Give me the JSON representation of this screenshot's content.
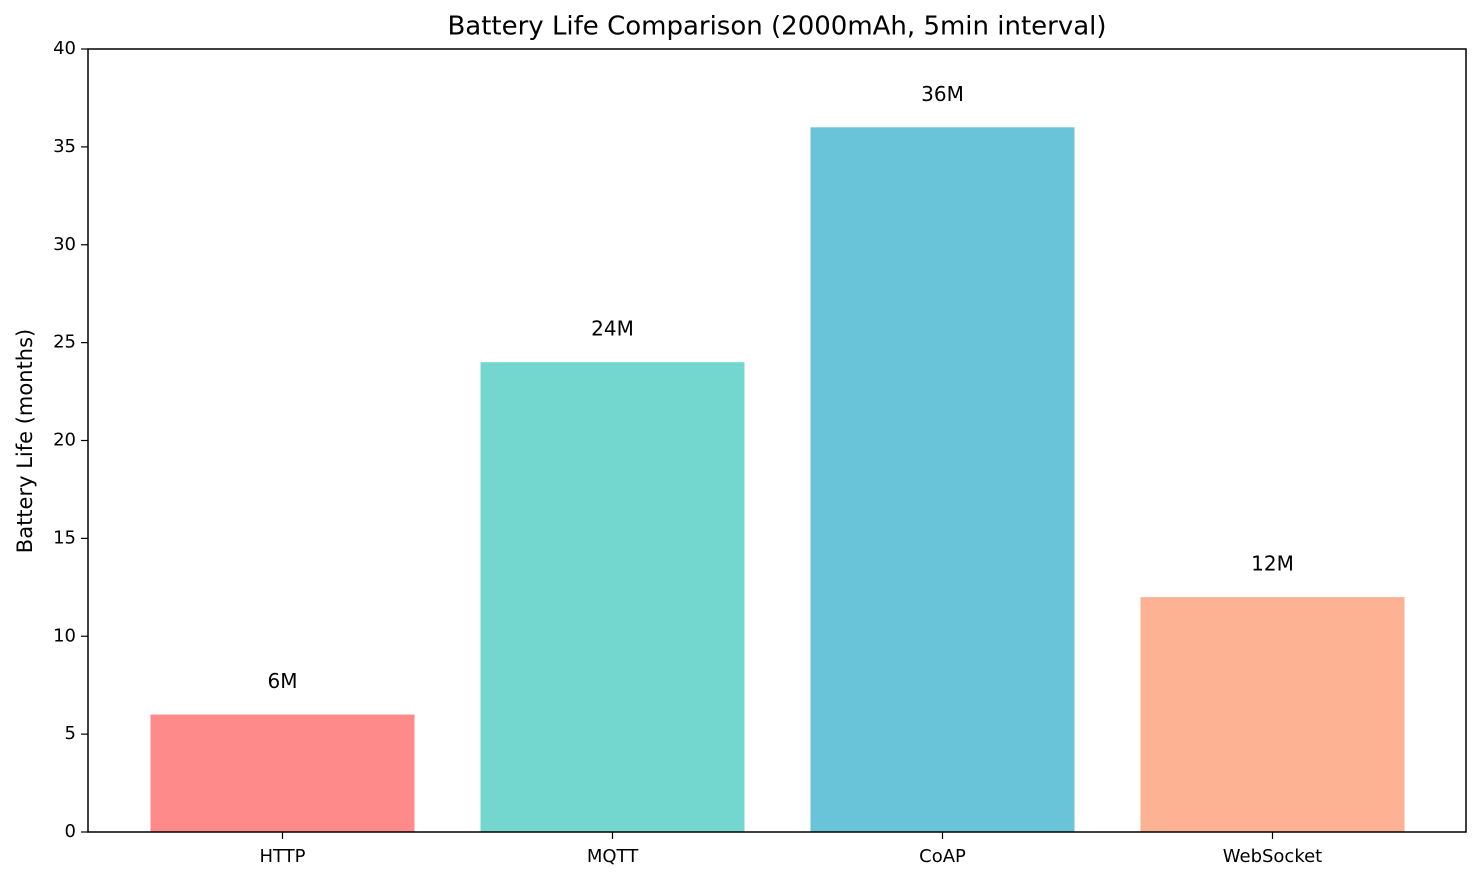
{
  "chart_data": {
    "type": "bar",
    "title": "Battery Life Comparison (2000mAh, 5min interval)",
    "ylabel": "Battery Life (months)",
    "categories": [
      "HTTP",
      "MQTT",
      "CoAP",
      "WebSocket"
    ],
    "values": [
      6,
      24,
      36,
      12
    ],
    "value_labels": [
      "6M",
      "24M",
      "36M",
      "12M"
    ],
    "colors": [
      "#ff8a8a",
      "#74d7cf",
      "#6ac4d9",
      "#feb294"
    ],
    "ylim": [
      0,
      40
    ],
    "yticks": [
      0,
      5,
      10,
      15,
      20,
      25,
      30,
      35,
      40
    ],
    "grid": false
  }
}
